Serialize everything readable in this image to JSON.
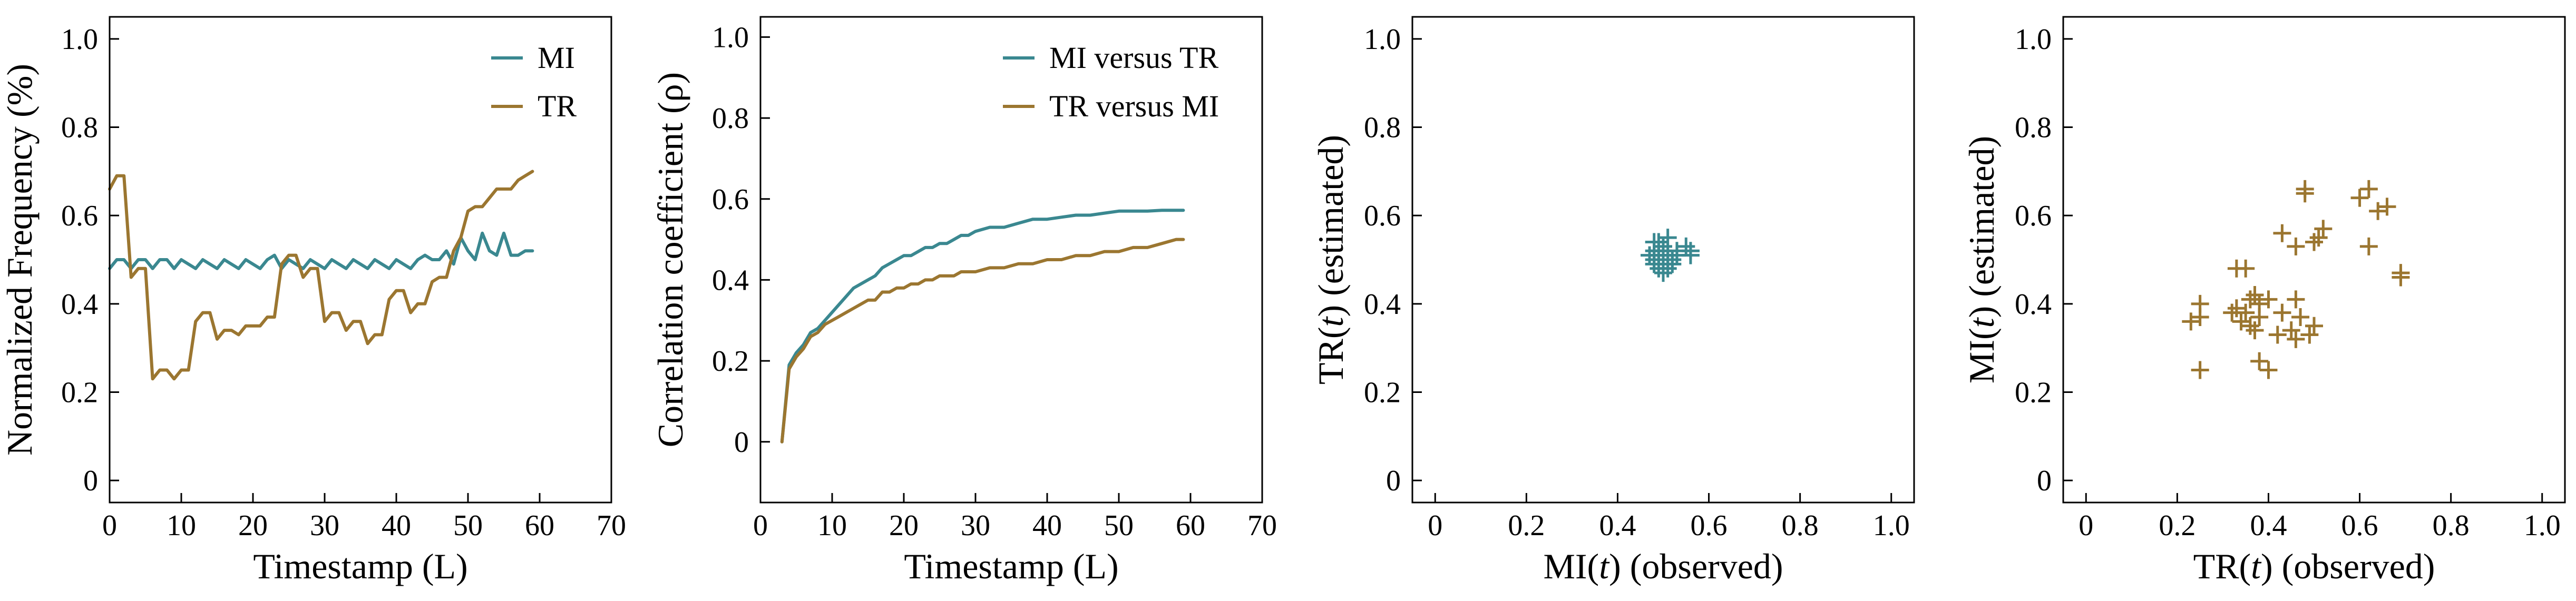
{
  "colors": {
    "mi": "#3a8890",
    "tr": "#9b7630",
    "axis": "#000000",
    "background": "#ffffff"
  },
  "chart_data": [
    {
      "type": "line",
      "xlabel": "Timestamp (L)",
      "ylabel": "Normalized Frequency (%)",
      "xlim": [
        0,
        70
      ],
      "ylim": [
        -0.05,
        1.05
      ],
      "xticks": [
        "0",
        "10",
        "20",
        "30",
        "40",
        "50",
        "60",
        "70"
      ],
      "yticks": [
        "0",
        "0.2",
        "0.4",
        "0.6",
        "0.8",
        "1.0"
      ],
      "legend_position": "top-right",
      "grid": false,
      "series": [
        {
          "name": "MI",
          "color": "#3a8890",
          "x": [
            0,
            1,
            2,
            3,
            4,
            5,
            6,
            7,
            8,
            9,
            10,
            11,
            12,
            13,
            14,
            15,
            16,
            17,
            18,
            19,
            20,
            21,
            22,
            23,
            24,
            25,
            26,
            27,
            28,
            29,
            30,
            31,
            32,
            33,
            34,
            35,
            36,
            37,
            38,
            39,
            40,
            41,
            42,
            43,
            44,
            45,
            46,
            47,
            48,
            49,
            50,
            51,
            52,
            53,
            54,
            55,
            56,
            57,
            58,
            59
          ],
          "y": [
            0.48,
            0.5,
            0.5,
            0.48,
            0.5,
            0.5,
            0.48,
            0.5,
            0.5,
            0.48,
            0.5,
            0.49,
            0.48,
            0.5,
            0.49,
            0.48,
            0.5,
            0.49,
            0.48,
            0.5,
            0.49,
            0.48,
            0.5,
            0.51,
            0.48,
            0.5,
            0.49,
            0.48,
            0.5,
            0.49,
            0.48,
            0.5,
            0.49,
            0.48,
            0.5,
            0.49,
            0.48,
            0.5,
            0.49,
            0.48,
            0.5,
            0.49,
            0.48,
            0.5,
            0.51,
            0.5,
            0.5,
            0.52,
            0.49,
            0.55,
            0.52,
            0.5,
            0.56,
            0.52,
            0.51,
            0.56,
            0.51,
            0.51,
            0.52,
            0.52
          ]
        },
        {
          "name": "TR",
          "color": "#9b7630",
          "x": [
            0,
            1,
            2,
            3,
            4,
            5,
            6,
            7,
            8,
            9,
            10,
            11,
            12,
            13,
            14,
            15,
            16,
            17,
            18,
            19,
            20,
            21,
            22,
            23,
            24,
            25,
            26,
            27,
            28,
            29,
            30,
            31,
            32,
            33,
            34,
            35,
            36,
            37,
            38,
            39,
            40,
            41,
            42,
            43,
            44,
            45,
            46,
            47,
            48,
            49,
            50,
            51,
            52,
            53,
            54,
            55,
            56,
            57,
            58,
            59
          ],
          "y": [
            0.66,
            0.69,
            0.69,
            0.46,
            0.48,
            0.48,
            0.23,
            0.25,
            0.25,
            0.23,
            0.25,
            0.25,
            0.36,
            0.38,
            0.38,
            0.32,
            0.34,
            0.34,
            0.33,
            0.35,
            0.35,
            0.35,
            0.37,
            0.37,
            0.49,
            0.51,
            0.51,
            0.46,
            0.48,
            0.48,
            0.36,
            0.38,
            0.38,
            0.34,
            0.36,
            0.36,
            0.31,
            0.33,
            0.33,
            0.41,
            0.43,
            0.43,
            0.38,
            0.4,
            0.4,
            0.45,
            0.46,
            0.46,
            0.52,
            0.55,
            0.61,
            0.62,
            0.62,
            0.64,
            0.66,
            0.66,
            0.66,
            0.68,
            0.69,
            0.7
          ]
        }
      ]
    },
    {
      "type": "line",
      "xlabel": "Timestamp (L)",
      "ylabel": "Correlation coefficient (ρ)",
      "xlim": [
        0,
        70
      ],
      "ylim": [
        -0.15,
        1.05
      ],
      "xticks": [
        "0",
        "10",
        "20",
        "30",
        "40",
        "50",
        "60",
        "70"
      ],
      "yticks": [
        "0",
        "0.2",
        "0.4",
        "0.6",
        "0.8",
        "1.0"
      ],
      "legend_position": "top-right",
      "grid": false,
      "series": [
        {
          "name": "MI versus TR",
          "color": "#3a8890",
          "x": [
            3,
            4,
            5,
            6,
            7,
            8,
            9,
            10,
            11,
            12,
            13,
            14,
            15,
            16,
            17,
            18,
            19,
            20,
            21,
            22,
            23,
            24,
            25,
            26,
            27,
            28,
            29,
            30,
            32,
            34,
            36,
            38,
            40,
            42,
            44,
            46,
            48,
            50,
            52,
            54,
            56,
            58,
            59
          ],
          "y": [
            0.0,
            0.19,
            0.22,
            0.24,
            0.27,
            0.28,
            0.3,
            0.32,
            0.34,
            0.36,
            0.38,
            0.39,
            0.4,
            0.41,
            0.43,
            0.44,
            0.45,
            0.46,
            0.46,
            0.47,
            0.48,
            0.48,
            0.49,
            0.49,
            0.5,
            0.51,
            0.51,
            0.52,
            0.53,
            0.53,
            0.54,
            0.55,
            0.55,
            0.555,
            0.56,
            0.56,
            0.565,
            0.57,
            0.57,
            0.57,
            0.572,
            0.572,
            0.572
          ]
        },
        {
          "name": "TR versus MI",
          "color": "#9b7630",
          "x": [
            3,
            4,
            5,
            6,
            7,
            8,
            9,
            10,
            11,
            12,
            13,
            14,
            15,
            16,
            17,
            18,
            19,
            20,
            21,
            22,
            23,
            24,
            25,
            26,
            27,
            28,
            29,
            30,
            32,
            34,
            36,
            38,
            40,
            42,
            44,
            46,
            48,
            50,
            52,
            54,
            56,
            58,
            59
          ],
          "y": [
            0.0,
            0.18,
            0.21,
            0.23,
            0.26,
            0.27,
            0.29,
            0.3,
            0.31,
            0.32,
            0.33,
            0.34,
            0.35,
            0.35,
            0.37,
            0.37,
            0.38,
            0.38,
            0.39,
            0.39,
            0.4,
            0.4,
            0.41,
            0.41,
            0.41,
            0.42,
            0.42,
            0.42,
            0.43,
            0.43,
            0.44,
            0.44,
            0.45,
            0.45,
            0.46,
            0.46,
            0.47,
            0.47,
            0.48,
            0.48,
            0.49,
            0.5,
            0.5
          ]
        }
      ]
    },
    {
      "type": "scatter",
      "marker": "+",
      "xlabel_parts": [
        "MI(",
        "t",
        ") (observed)"
      ],
      "ylabel_parts": [
        "TR(",
        "t",
        ") (estimated)"
      ],
      "xlim": [
        -0.05,
        1.05
      ],
      "ylim": [
        -0.05,
        1.05
      ],
      "xticks": [
        "0",
        "0.2",
        "0.4",
        "0.6",
        "0.8",
        "1.0"
      ],
      "yticks": [
        "0",
        "0.2",
        "0.4",
        "0.6",
        "0.8",
        "1.0"
      ],
      "grid": false,
      "color": "#3a8890",
      "points": [
        [
          0.48,
          0.5
        ],
        [
          0.49,
          0.52
        ],
        [
          0.5,
          0.49
        ],
        [
          0.51,
          0.51
        ],
        [
          0.49,
          0.48
        ],
        [
          0.5,
          0.53
        ],
        [
          0.52,
          0.5
        ],
        [
          0.48,
          0.52
        ],
        [
          0.51,
          0.55
        ],
        [
          0.53,
          0.52
        ],
        [
          0.5,
          0.5
        ],
        [
          0.49,
          0.51
        ],
        [
          0.55,
          0.53
        ],
        [
          0.56,
          0.52
        ],
        [
          0.48,
          0.49
        ],
        [
          0.5,
          0.47
        ],
        [
          0.52,
          0.49
        ],
        [
          0.49,
          0.54
        ],
        [
          0.51,
          0.5
        ],
        [
          0.5,
          0.52
        ],
        [
          0.53,
          0.51
        ],
        [
          0.47,
          0.51
        ],
        [
          0.5,
          0.51
        ],
        [
          0.56,
          0.51
        ],
        [
          0.51,
          0.48
        ],
        [
          0.48,
          0.54
        ]
      ]
    },
    {
      "type": "scatter",
      "marker": "+",
      "xlabel_parts": [
        "TR(",
        "t",
        ") (observed)"
      ],
      "ylabel_parts": [
        "MI(",
        "t",
        ") (estimated)"
      ],
      "xlim": [
        -0.05,
        1.05
      ],
      "ylim": [
        -0.05,
        1.05
      ],
      "xticks": [
        "0",
        "0.2",
        "0.4",
        "0.6",
        "0.8",
        "1.0"
      ],
      "yticks": [
        "0",
        "0.2",
        "0.4",
        "0.6",
        "0.8",
        "1.0"
      ],
      "grid": false,
      "color": "#9b7630",
      "points": [
        [
          0.23,
          0.36
        ],
        [
          0.25,
          0.4
        ],
        [
          0.25,
          0.37
        ],
        [
          0.25,
          0.25
        ],
        [
          0.32,
          0.38
        ],
        [
          0.33,
          0.39
        ],
        [
          0.33,
          0.48
        ],
        [
          0.35,
          0.48
        ],
        [
          0.34,
          0.36
        ],
        [
          0.35,
          0.38
        ],
        [
          0.36,
          0.35
        ],
        [
          0.36,
          0.41
        ],
        [
          0.37,
          0.42
        ],
        [
          0.38,
          0.37
        ],
        [
          0.37,
          0.34
        ],
        [
          0.38,
          0.4
        ],
        [
          0.38,
          0.27
        ],
        [
          0.4,
          0.25
        ],
        [
          0.4,
          0.41
        ],
        [
          0.42,
          0.33
        ],
        [
          0.43,
          0.38
        ],
        [
          0.45,
          0.34
        ],
        [
          0.46,
          0.32
        ],
        [
          0.46,
          0.41
        ],
        [
          0.47,
          0.37
        ],
        [
          0.48,
          0.66
        ],
        [
          0.48,
          0.65
        ],
        [
          0.49,
          0.33
        ],
        [
          0.5,
          0.35
        ],
        [
          0.43,
          0.56
        ],
        [
          0.46,
          0.53
        ],
        [
          0.5,
          0.54
        ],
        [
          0.51,
          0.55
        ],
        [
          0.52,
          0.57
        ],
        [
          0.6,
          0.64
        ],
        [
          0.62,
          0.66
        ],
        [
          0.62,
          0.53
        ],
        [
          0.64,
          0.61
        ],
        [
          0.66,
          0.62
        ],
        [
          0.69,
          0.46
        ],
        [
          0.69,
          0.47
        ]
      ]
    }
  ]
}
